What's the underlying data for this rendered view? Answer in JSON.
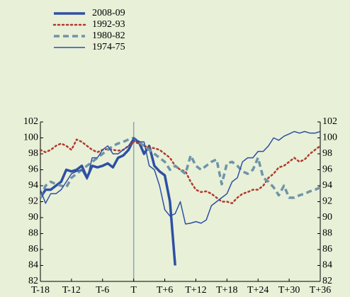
{
  "chart_data": {
    "type": "line",
    "x": [
      -18,
      -17,
      -16,
      -15,
      -14,
      -13,
      -12,
      -11,
      -10,
      -9,
      -8,
      -7,
      -6,
      -5,
      -4,
      -3,
      -2,
      -1,
      0,
      1,
      2,
      3,
      4,
      5,
      6,
      7,
      8,
      9,
      10,
      11,
      12,
      13,
      14,
      15,
      16,
      17,
      18,
      19,
      20,
      21,
      22,
      23,
      24,
      25,
      26,
      27,
      28,
      29,
      30,
      31,
      32,
      33,
      34,
      35,
      36
    ],
    "series": [
      {
        "name": "2008-09",
        "color": "#2e4fa3",
        "style": "solid",
        "width": 3.5,
        "values": [
          92.5,
          93.5,
          93.5,
          94,
          94.5,
          96,
          95.8,
          96,
          96.5,
          95,
          96.5,
          96.3,
          96.5,
          96.8,
          96.3,
          97.5,
          97.8,
          98.5,
          99.8,
          99.5,
          98,
          99,
          96.5,
          95.8,
          95.3,
          92,
          84,
          null,
          null,
          null,
          null,
          null,
          null,
          null,
          null,
          null,
          null,
          null,
          null,
          null,
          null,
          null,
          null,
          null,
          null,
          null,
          null,
          null,
          null,
          null,
          null,
          null,
          null,
          null,
          null
        ]
      },
      {
        "name": "1992-93",
        "color": "#b03a2e",
        "style": "dotted",
        "width": 2.5,
        "values": [
          98.5,
          98.2,
          98.5,
          99,
          99.3,
          99,
          98.5,
          99.8,
          99.5,
          99,
          98.5,
          98.2,
          98.5,
          98.6,
          98.5,
          98.4,
          98.5,
          99,
          99.5,
          99.3,
          99,
          98.8,
          98.7,
          98.5,
          98,
          97.5,
          96.5,
          96,
          95.8,
          94.5,
          93.5,
          93.2,
          93.3,
          93,
          92.5,
          92,
          92,
          91.8,
          92.5,
          93,
          93.2,
          93.5,
          93.5,
          94,
          95,
          95.5,
          96.3,
          96.5,
          97,
          97.5,
          97,
          97.3,
          98,
          98.5,
          99
        ]
      },
      {
        "name": "1980-82",
        "color": "#6e94a8",
        "style": "dashed",
        "width": 3.5,
        "values": [
          92.5,
          94,
          94.5,
          94.2,
          94,
          93.8,
          95,
          95.5,
          96,
          96.5,
          97,
          97.5,
          98,
          98.5,
          99,
          99.3,
          99.5,
          99.8,
          100,
          99.5,
          99,
          98.5,
          98,
          97.5,
          97,
          96,
          96.5,
          96,
          95.5,
          97.8,
          96.5,
          96,
          96.5,
          97,
          97.3,
          94.2,
          96.8,
          97,
          96.5,
          95.8,
          95.5,
          96,
          97.5,
          95,
          94.5,
          93.8,
          92.8,
          94,
          92.5,
          92.5,
          92.8,
          93,
          93.3,
          93.5,
          93.8
        ]
      },
      {
        "name": "1974-75",
        "color": "#2e4fa3",
        "style": "solid",
        "width": 1.5,
        "values": [
          93.5,
          91.8,
          93,
          93,
          93.5,
          94.5,
          95.5,
          95.8,
          96,
          94.8,
          97.5,
          97.5,
          98.5,
          99,
          98,
          98,
          98.5,
          99,
          100,
          99.5,
          99.5,
          96.5,
          96,
          94,
          91,
          90.2,
          90.5,
          92,
          89.2,
          89.3,
          89.5,
          89.3,
          89.7,
          91.5,
          92,
          92.5,
          93,
          94.5,
          95,
          97,
          97.5,
          97.5,
          98.3,
          98.3,
          99,
          100,
          99.7,
          100.2,
          100.5,
          100.8,
          100.6,
          100.8,
          100.6,
          100.6,
          100.8
        ]
      }
    ],
    "xlim": [
      -18,
      36
    ],
    "xticks": [
      {
        "value": -18,
        "label": "T-18"
      },
      {
        "value": -12,
        "label": "T-12"
      },
      {
        "value": -6,
        "label": "T-6"
      },
      {
        "value": 0,
        "label": "T"
      },
      {
        "value": 6,
        "label": "T+6"
      },
      {
        "value": 12,
        "label": "T+12"
      },
      {
        "value": 18,
        "label": "T+18"
      },
      {
        "value": 24,
        "label": "T+24"
      },
      {
        "value": 30,
        "label": "T+30"
      },
      {
        "value": 36,
        "label": "T+36"
      }
    ],
    "ylim": [
      82,
      102
    ],
    "yticks": [
      82,
      84,
      86,
      88,
      90,
      92,
      94,
      96,
      98,
      100,
      102
    ],
    "y2lim": [
      82,
      102
    ],
    "y2ticks": [
      82,
      84,
      86,
      88,
      90,
      92,
      94,
      96,
      98,
      100,
      102
    ],
    "vline": 0
  }
}
